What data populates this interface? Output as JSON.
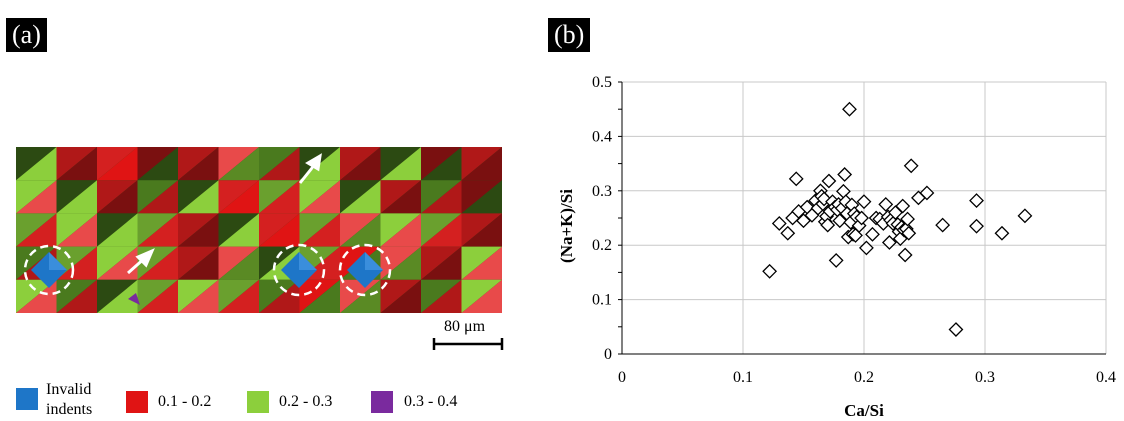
{
  "panels": {
    "a_label": "(a)",
    "b_label": "(b)"
  },
  "map": {
    "scale_label": "80 μm",
    "legend": [
      {
        "color": "#1e76c8",
        "label_line1": "Invalid",
        "label_line2": "indents"
      },
      {
        "color": "#e01414",
        "label": "0.1 - 0.2"
      },
      {
        "color": "#8ccf3c",
        "label": "0.2 - 0.3"
      },
      {
        "color": "#7a2a9e",
        "label": "0.3 - 0.4"
      }
    ]
  },
  "chart_data": {
    "type": "scatter",
    "xlabel": "Ca/Si",
    "ylabel": "(Na+K)/Si",
    "xlim": [
      0,
      0.4
    ],
    "ylim": [
      0,
      0.5
    ],
    "xticks": [
      "0",
      "0.1",
      "0.2",
      "0.3",
      "0.4"
    ],
    "yticks": [
      "0",
      "0.05",
      "0.1",
      "0.15",
      "0.2",
      "0.25",
      "0.3",
      "0.35",
      "0.4",
      "0.45",
      "0.5"
    ],
    "grid": true,
    "marker": "diamond",
    "points": [
      [
        0.122,
        0.152
      ],
      [
        0.13,
        0.24
      ],
      [
        0.137,
        0.222
      ],
      [
        0.141,
        0.25
      ],
      [
        0.144,
        0.322
      ],
      [
        0.146,
        0.262
      ],
      [
        0.15,
        0.245
      ],
      [
        0.153,
        0.27
      ],
      [
        0.157,
        0.255
      ],
      [
        0.16,
        0.282
      ],
      [
        0.162,
        0.268
      ],
      [
        0.164,
        0.3
      ],
      [
        0.165,
        0.29
      ],
      [
        0.166,
        0.276
      ],
      [
        0.167,
        0.285
      ],
      [
        0.168,
        0.243
      ],
      [
        0.169,
        0.253
      ],
      [
        0.17,
        0.237
      ],
      [
        0.171,
        0.318
      ],
      [
        0.172,
        0.262
      ],
      [
        0.174,
        0.28
      ],
      [
        0.176,
        0.27
      ],
      [
        0.177,
        0.172
      ],
      [
        0.178,
        0.265
      ],
      [
        0.179,
        0.275
      ],
      [
        0.18,
        0.245
      ],
      [
        0.182,
        0.268
      ],
      [
        0.183,
        0.299
      ],
      [
        0.184,
        0.33
      ],
      [
        0.185,
        0.28
      ],
      [
        0.186,
        0.258
      ],
      [
        0.187,
        0.215
      ],
      [
        0.188,
        0.45
      ],
      [
        0.189,
        0.242
      ],
      [
        0.19,
        0.274
      ],
      [
        0.191,
        0.22
      ],
      [
        0.192,
        0.258
      ],
      [
        0.193,
        0.218
      ],
      [
        0.194,
        0.252
      ],
      [
        0.196,
        0.236
      ],
      [
        0.198,
        0.25
      ],
      [
        0.2,
        0.28
      ],
      [
        0.202,
        0.195
      ],
      [
        0.207,
        0.22
      ],
      [
        0.21,
        0.25
      ],
      [
        0.213,
        0.248
      ],
      [
        0.216,
        0.24
      ],
      [
        0.218,
        0.275
      ],
      [
        0.22,
        0.252
      ],
      [
        0.221,
        0.205
      ],
      [
        0.222,
        0.246
      ],
      [
        0.224,
        0.24
      ],
      [
        0.226,
        0.26
      ],
      [
        0.228,
        0.238
      ],
      [
        0.229,
        0.225
      ],
      [
        0.23,
        0.212
      ],
      [
        0.231,
        0.233
      ],
      [
        0.232,
        0.272
      ],
      [
        0.233,
        0.228
      ],
      [
        0.234,
        0.182
      ],
      [
        0.235,
        0.23
      ],
      [
        0.236,
        0.248
      ],
      [
        0.237,
        0.222
      ],
      [
        0.239,
        0.346
      ],
      [
        0.245,
        0.287
      ],
      [
        0.252,
        0.296
      ],
      [
        0.265,
        0.237
      ],
      [
        0.276,
        0.045
      ],
      [
        0.293,
        0.282
      ],
      [
        0.293,
        0.235
      ],
      [
        0.314,
        0.222
      ],
      [
        0.333,
        0.254
      ]
    ]
  }
}
